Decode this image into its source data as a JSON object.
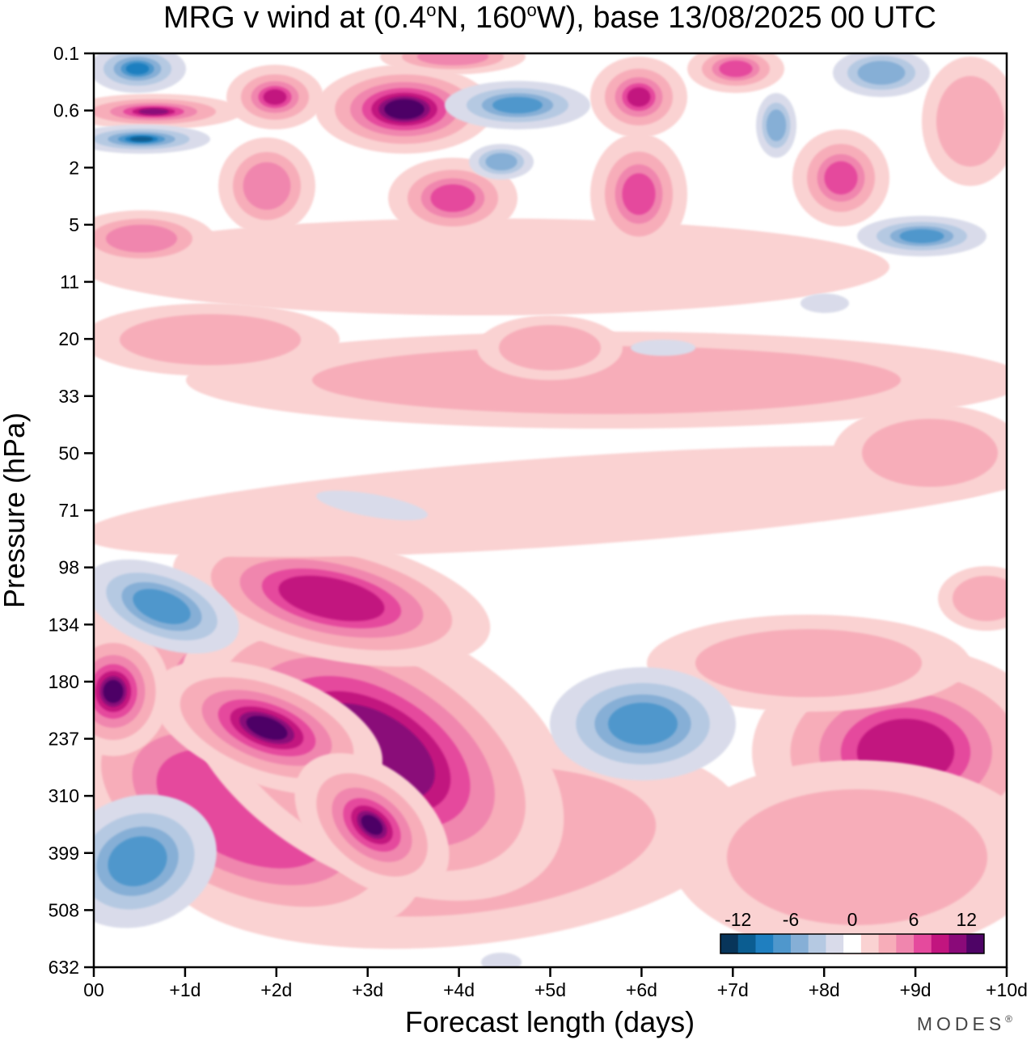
{
  "chart_data": {
    "type": "heatmap",
    "title": "MRG v wind at (0.4°N, 160°W),  base 13/08/2025  00 UTC",
    "title_parts": {
      "prefix": "MRG v wind at (0.4",
      "lat_unit": "N, 160",
      "lon_unit": "W),  base 13/08/2025  00 UTC",
      "degree_mark": "o"
    },
    "xlabel": "Forecast length (days)",
    "ylabel": "Pressure (hPa)",
    "x_ticks": [
      "00",
      "+1d",
      "+2d",
      "+3d",
      "+4d",
      "+5d",
      "+6d",
      "+7d",
      "+8d",
      "+9d",
      "+10d"
    ],
    "xlim": [
      0,
      10
    ],
    "y_ticks": [
      "0.1",
      "0.6",
      "2",
      "5",
      "11",
      "20",
      "33",
      "50",
      "71",
      "98",
      "134",
      "180",
      "237",
      "310",
      "399",
      "508",
      "632"
    ],
    "y_scale": "log-pressure (inverted, top = 0.1 hPa)",
    "colorbar": {
      "labels": [
        "-12",
        "-6",
        "0",
        "6",
        "12"
      ],
      "levels": [
        -14,
        -12,
        -10,
        -8,
        -6,
        -4,
        -2,
        2,
        4,
        6,
        8,
        10,
        12,
        14
      ],
      "colors": [
        "#08355a",
        "#0b5d91",
        "#1f7fc0",
        "#4f97cc",
        "#86afd6",
        "#b5c9e2",
        "#d9dbea",
        "#ffffff",
        "#fad2d2",
        "#f7adb9",
        "#f086ae",
        "#e54a9d",
        "#c2157f",
        "#8a0a79",
        "#4e0466"
      ],
      "placement": "bottom-right"
    },
    "features": [
      {
        "kind": "positive",
        "max": 14,
        "center_day": 2.3,
        "center_hPa": 230,
        "desc": "deep magenta core near 180-320 hPa, days 0-4"
      },
      {
        "kind": "positive",
        "max": 12,
        "center_day": 3.4,
        "center_hPa": 340,
        "desc": "extension to 400 hPa near day 3-4"
      },
      {
        "kind": "positive",
        "max": 10,
        "center_day": 2.7,
        "center_hPa": 115,
        "desc": "band near 100-130 hPa days 1.5-4"
      },
      {
        "kind": "positive",
        "max": 10,
        "center_day": 9.1,
        "center_hPa": 270,
        "desc": "core near 250-300 hPa days 8.5-10"
      },
      {
        "kind": "negative",
        "min": -6,
        "center_day": 6.5,
        "center_hPa": 230,
        "desc": "blue cell days 5.1-7.1"
      },
      {
        "kind": "negative",
        "min": -6,
        "center_day": 0.5,
        "center_hPa": 110,
        "desc": "blue cell near 110 hPa day 0-1.5"
      },
      {
        "kind": "negative",
        "min": -6,
        "center_day": 0.3,
        "center_hPa": 420,
        "desc": "blue cell near 420 hPa"
      },
      {
        "kind": "positive",
        "max": 14,
        "center_day": 3.5,
        "center_hPa": 0.45,
        "desc": "upper-level magenta near 0.4-1 hPa"
      },
      {
        "kind": "negative",
        "min": -10,
        "center_day": 0.5,
        "center_hPa": 1.0,
        "desc": "upper blue cells near 0.2 and 1 hPa"
      }
    ]
  },
  "branding": {
    "logo_text": "MODES",
    "logo_mark": "®"
  }
}
